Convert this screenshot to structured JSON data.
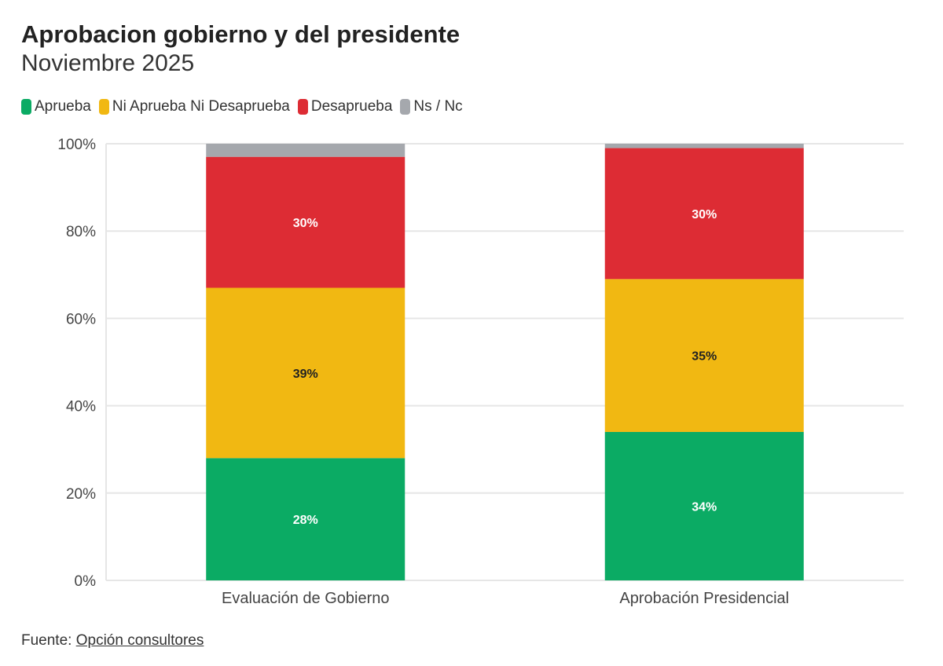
{
  "title": "Aprobacion gobierno y del presidente",
  "subtitle": "Noviembre 2025",
  "source": {
    "label": "Fuente:",
    "link": "Opción consultores"
  },
  "chart_data": {
    "type": "bar",
    "stacked": true,
    "categories": [
      "Evaluación de Gobierno",
      "Aprobación Presidencial"
    ],
    "series": [
      {
        "name": "Aprueba",
        "color": "#0bab64",
        "values": [
          28,
          34
        ],
        "labels": [
          "28%",
          "34%"
        ],
        "label_color": "#ffffff"
      },
      {
        "name": "Ni Aprueba Ni Desaprueba",
        "color": "#f1b812",
        "values": [
          39,
          35
        ],
        "labels": [
          "39%",
          "35%"
        ],
        "label_color": "#222222"
      },
      {
        "name": "Desaprueba",
        "color": "#dd2c34",
        "values": [
          30,
          30
        ],
        "labels": [
          "30%",
          "30%"
        ],
        "label_color": "#ffffff"
      },
      {
        "name": "Ns / Nc",
        "color": "#a5a8ad",
        "values": [
          3,
          1
        ],
        "labels": [
          "",
          ""
        ],
        "label_color": "#ffffff"
      }
    ],
    "ylim": [
      0,
      100
    ],
    "yticks": [
      "0%",
      "20%",
      "40%",
      "60%",
      "80%",
      "100%"
    ],
    "grid": true,
    "legend": "top-left"
  }
}
